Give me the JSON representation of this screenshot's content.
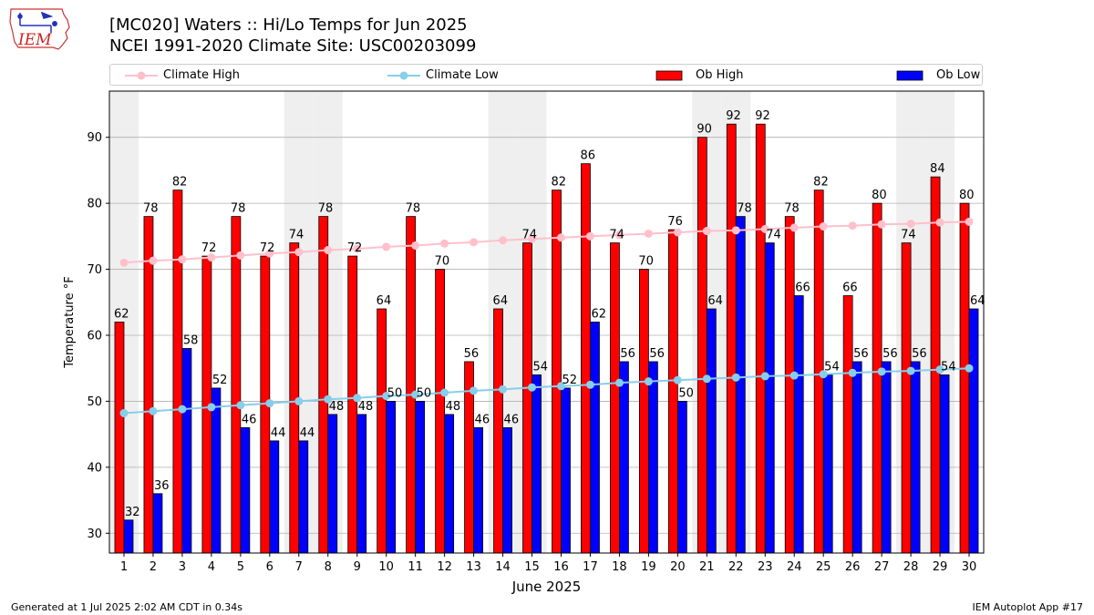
{
  "title": "[MC020] Waters  :: Hi/Lo Temps for Jun 2025",
  "subtitle": "NCEI 1991-2020 Climate Site: USC00203099",
  "footer_left": "Generated at 1 Jul 2025 2:02 AM CDT in 0.34s",
  "footer_right": "IEM Autoplot App #17",
  "logo_text": "IEM",
  "legend": {
    "climate_high": "Climate High",
    "climate_low": "Climate Low",
    "ob_high": "Ob High",
    "ob_low": "Ob Low"
  },
  "colors": {
    "ob_high": "#ff0000",
    "ob_low": "#0000ff",
    "climate_high": "#ffc0cb",
    "climate_low": "#87ceeb",
    "weekend_shade": "#efefef",
    "grid": "#b0b0b0"
  },
  "chart_data": {
    "type": "bar",
    "title": "[MC020] Waters  :: Hi/Lo Temps for Jun 2025",
    "subtitle": "NCEI 1991-2020 Climate Site: USC00203099",
    "xlabel": "June 2025",
    "ylabel": "Temperature °F",
    "ylim": [
      27,
      97
    ],
    "yticks": [
      30,
      40,
      50,
      60,
      70,
      80,
      90
    ],
    "grid": true,
    "legend_position": "top",
    "categories": [
      "1",
      "2",
      "3",
      "4",
      "5",
      "6",
      "7",
      "8",
      "9",
      "10",
      "11",
      "12",
      "13",
      "14",
      "15",
      "16",
      "17",
      "18",
      "19",
      "20",
      "21",
      "22",
      "23",
      "24",
      "25",
      "26",
      "27",
      "28",
      "29",
      "30"
    ],
    "shaded_days": [
      1,
      7,
      8,
      14,
      15,
      21,
      22,
      28,
      29
    ],
    "series": [
      {
        "name": "Ob High",
        "kind": "bar",
        "values": [
          62,
          78,
          82,
          72,
          78,
          72,
          74,
          78,
          72,
          64,
          78,
          70,
          56,
          64,
          74,
          82,
          86,
          74,
          70,
          76,
          90,
          92,
          92,
          78,
          82,
          66,
          80,
          74,
          84,
          80
        ]
      },
      {
        "name": "Ob Low",
        "kind": "bar",
        "values": [
          32,
          36,
          58,
          52,
          46,
          44,
          44,
          48,
          48,
          50,
          50,
          48,
          46,
          46,
          54,
          52,
          62,
          56,
          56,
          50,
          64,
          78,
          74,
          66,
          54,
          56,
          56,
          56,
          54,
          64
        ]
      },
      {
        "name": "Climate High",
        "kind": "line",
        "values": [
          71.0,
          71.3,
          71.5,
          71.8,
          72.1,
          72.4,
          72.6,
          72.9,
          73.1,
          73.4,
          73.6,
          73.9,
          74.1,
          74.4,
          74.6,
          74.8,
          75.0,
          75.2,
          75.4,
          75.6,
          75.8,
          75.9,
          76.1,
          76.3,
          76.5,
          76.6,
          76.8,
          76.9,
          77.1,
          77.2
        ]
      },
      {
        "name": "Climate Low",
        "kind": "line",
        "values": [
          48.2,
          48.5,
          48.8,
          49.1,
          49.4,
          49.7,
          50.0,
          50.3,
          50.5,
          50.8,
          51.0,
          51.3,
          51.6,
          51.8,
          52.1,
          52.3,
          52.5,
          52.8,
          53.0,
          53.2,
          53.4,
          53.6,
          53.8,
          53.9,
          54.1,
          54.3,
          54.5,
          54.6,
          54.8,
          55.0
        ]
      }
    ]
  }
}
